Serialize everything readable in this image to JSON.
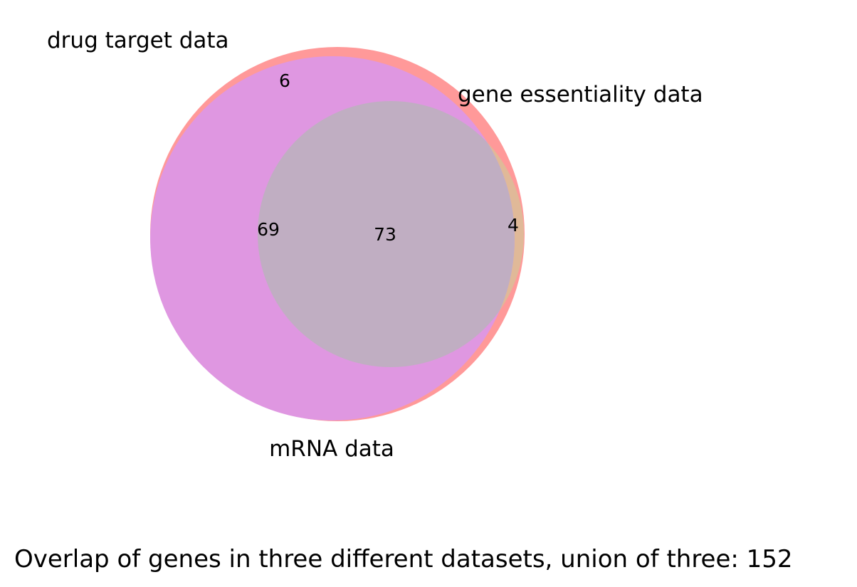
{
  "sets": [
    {
      "key": "drug",
      "label": "drug target data",
      "color": "#ff9999"
    },
    {
      "key": "gene",
      "label": "gene essentiality data",
      "color": "#e0b998"
    },
    {
      "key": "mrna",
      "label": "mRNA data",
      "color": "#df97e1"
    }
  ],
  "regions": {
    "drug_only": "6",
    "drug_and_mrna": "69",
    "all_three": "73",
    "drug_and_gene": "4"
  },
  "overlap_color": "#c0aec2",
  "caption": "Overlap of genes in three different datasets, union of three: 152"
}
